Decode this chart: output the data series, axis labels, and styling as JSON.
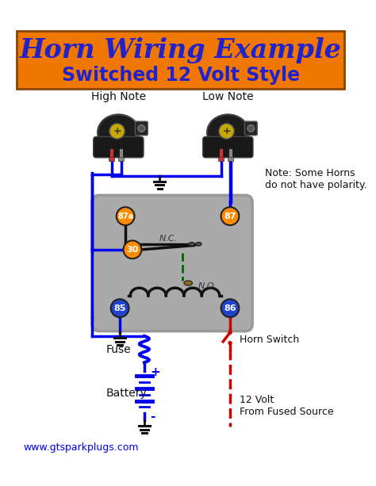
{
  "title_line1": "Horn Wiring Example",
  "title_line2": "Switched 12 Volt Style",
  "title_bg_color": "#F07800",
  "title_color": "#2222CC",
  "bg_color": "#ffffff",
  "relay_bg": "#aaaaaa",
  "wire_blue": "#0000ee",
  "wire_red": "#cc0000",
  "wire_green_dashed": "#006600",
  "wire_black": "#111111",
  "pin_orange_bg": "#FF8C00",
  "pin_blue_bg": "#2244cc",
  "note_text": "Note: Some Horns\ndo not have polarity.",
  "label_high": "High Note",
  "label_low": "Low Note",
  "label_fuse": "Fuse",
  "label_battery": "Battery",
  "label_horn_switch": "Horn Switch",
  "label_12v": "12 Volt\nFrom Fused Source",
  "label_nc": "N.C.",
  "label_no": "N.O.",
  "label_website": "www.gtsparkplugs.com",
  "figsize": [
    4.74,
    6.13
  ],
  "dpi": 100
}
